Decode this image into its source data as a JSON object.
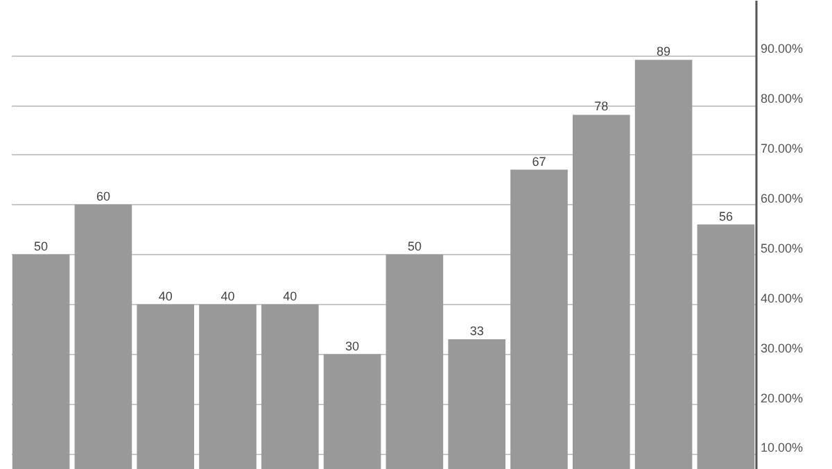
{
  "chart_data": {
    "type": "bar",
    "categories": [
      null,
      null,
      null,
      null,
      null,
      null,
      null,
      null,
      null,
      null,
      null,
      null
    ],
    "values": [
      50,
      60,
      40,
      40,
      40,
      30,
      50,
      33,
      67,
      78,
      89,
      56
    ],
    "color": "#999999",
    "ylim": [
      7,
      101
    ],
    "yticks": [
      {
        "value": 10,
        "label": "10.00%"
      },
      {
        "value": 20,
        "label": "20.00%"
      },
      {
        "value": 30,
        "label": "30.00%"
      },
      {
        "value": 40,
        "label": "40.00%"
      },
      {
        "value": 50,
        "label": "50.00%"
      },
      {
        "value": 60,
        "label": "60.00%"
      },
      {
        "value": 70,
        "label": "70.00%"
      },
      {
        "value": 80,
        "label": "80.00%"
      },
      {
        "value": 90,
        "label": "90.00%"
      }
    ],
    "tick_labels": "y",
    "grid": "y",
    "data_labels": true
  }
}
